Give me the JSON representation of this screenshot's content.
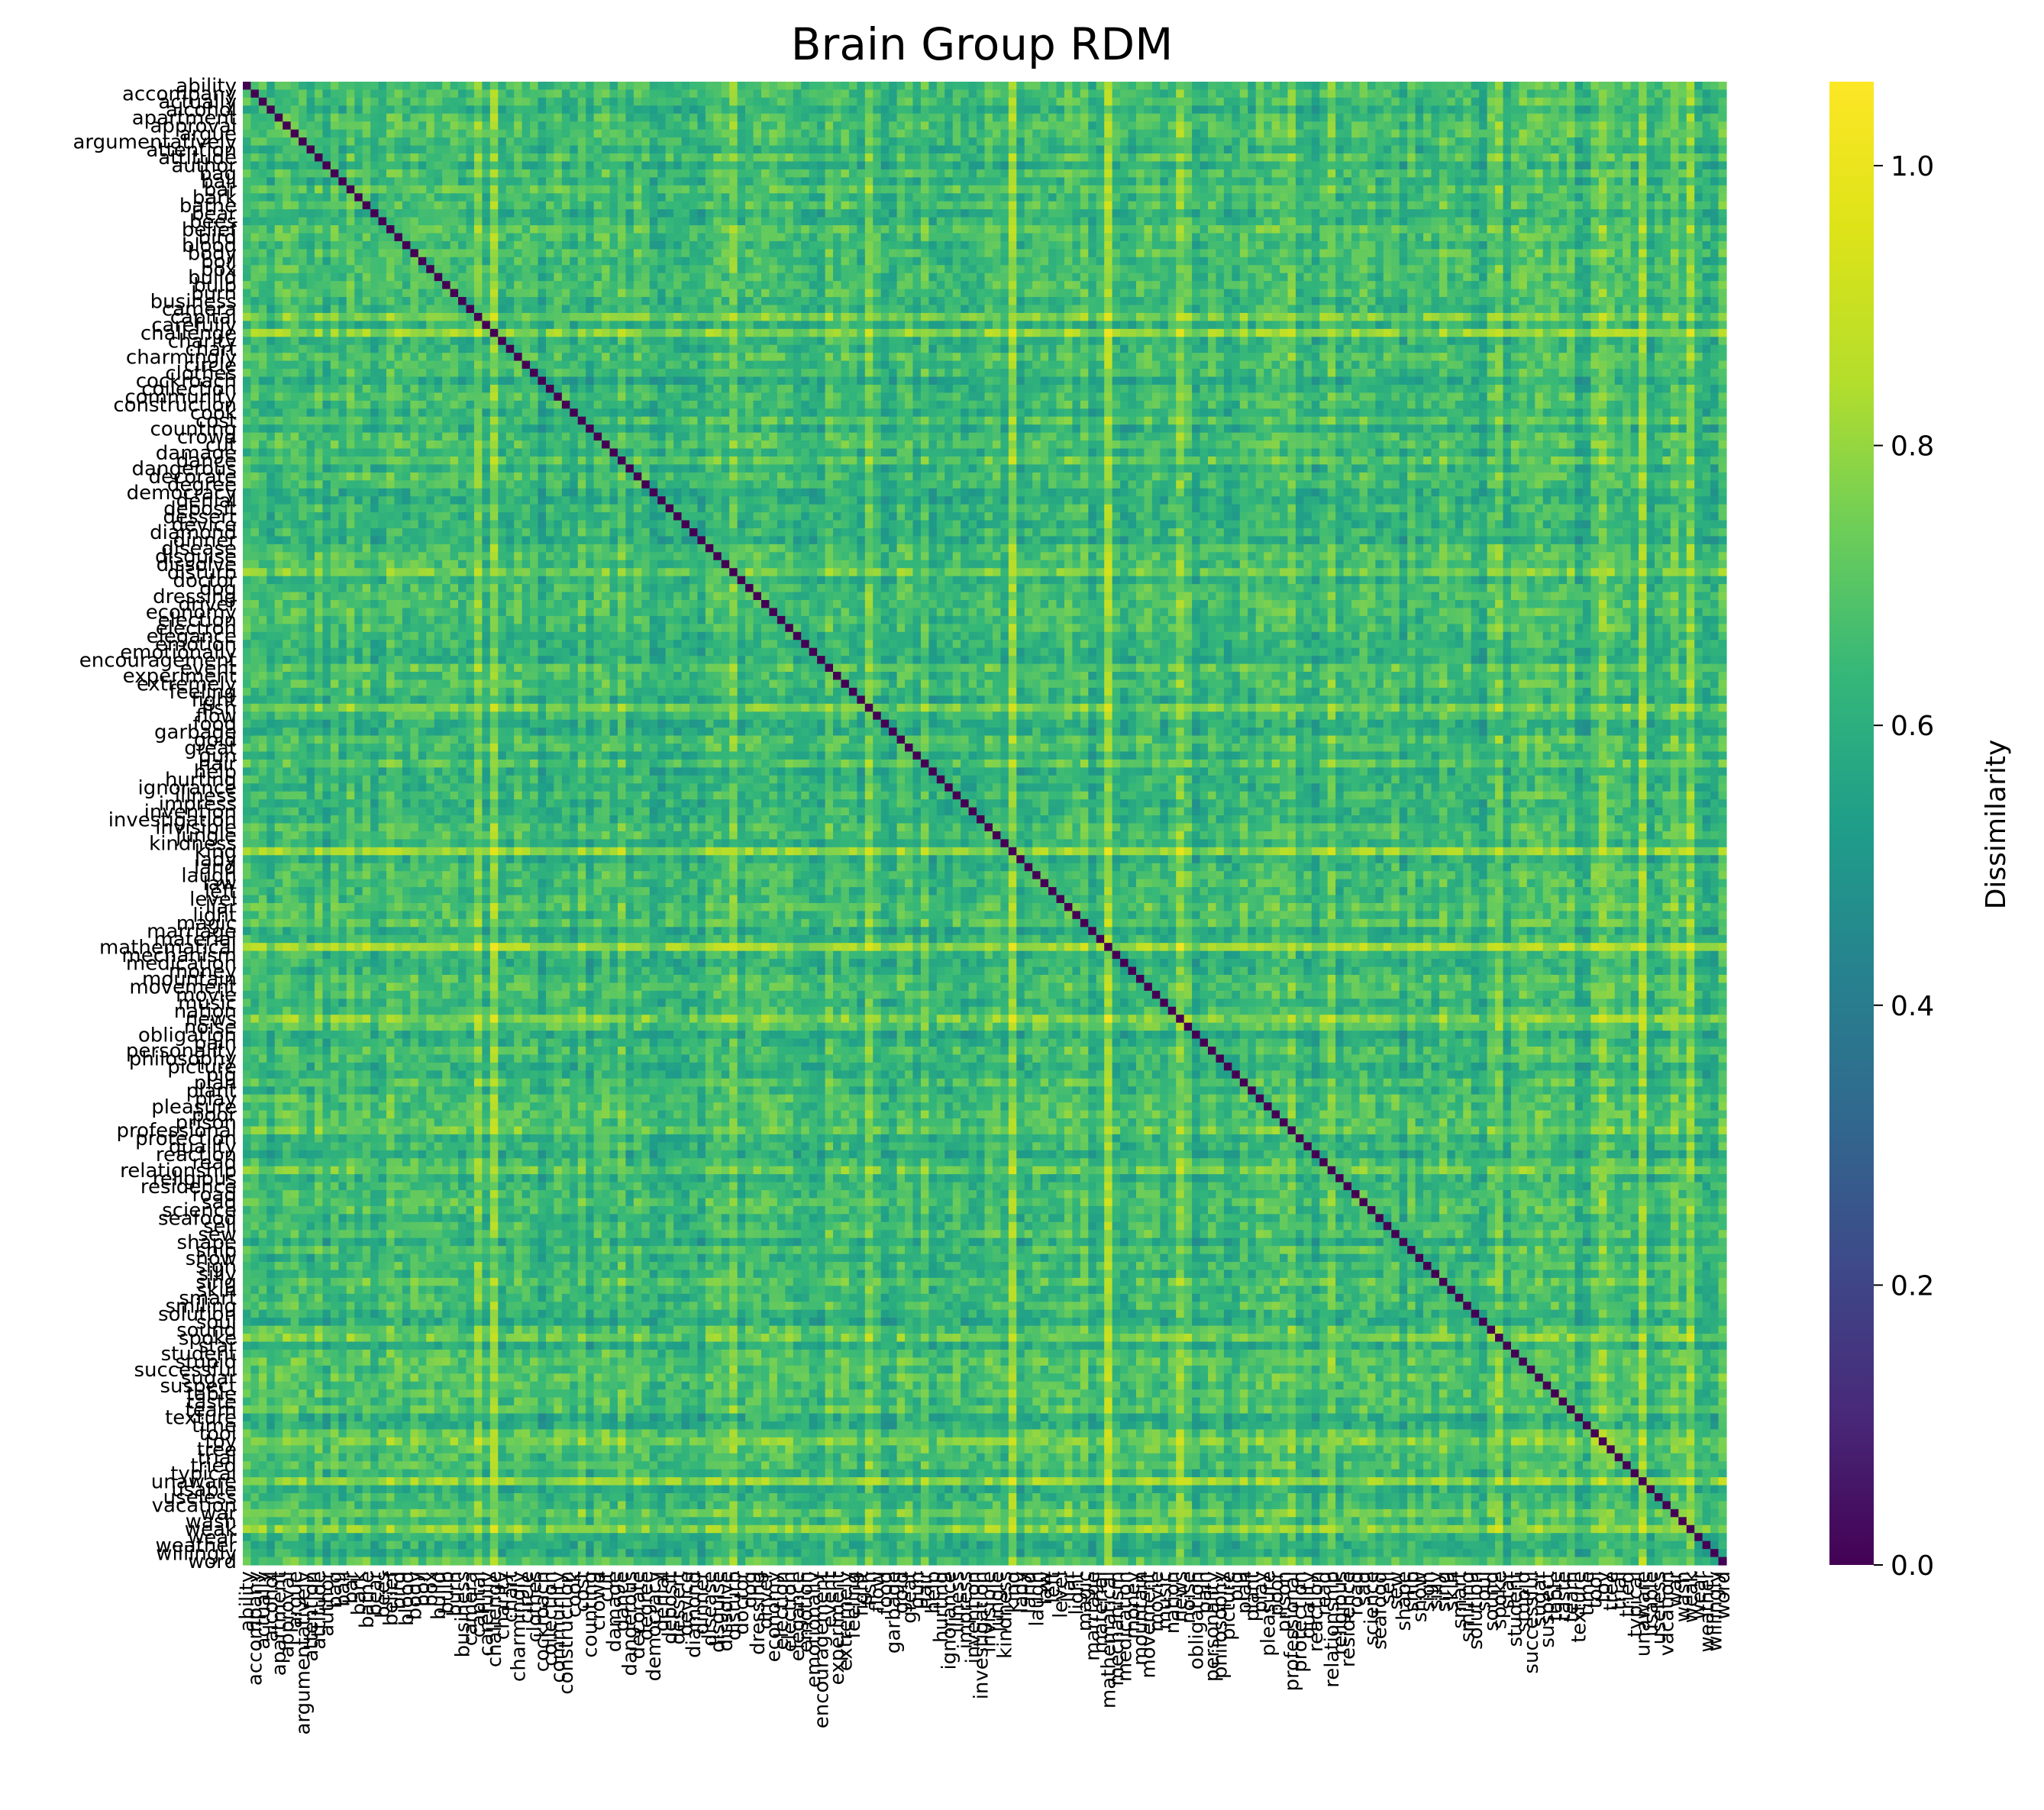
{
  "chart_data": {
    "type": "heatmap",
    "title": "Brain Group RDM",
    "colorbar": {
      "label": "Dissimilarity",
      "colormap": "viridis",
      "range": [
        0.0,
        1.06
      ],
      "ticks": [
        "0.0",
        "0.2",
        "0.4",
        "0.6",
        "0.8",
        "1.0"
      ]
    },
    "diagonal_value": 0.0,
    "off_diagonal_typical_range": [
      0.5,
      0.85
    ],
    "labels": [
      "ability",
      "accompany",
      "actually",
      "alcohol",
      "apartment",
      "approval",
      "argue",
      "argumentatively",
      "attention",
      "attitude",
      "author",
      "bag",
      "ball",
      "bar",
      "bark",
      "bathe",
      "bear",
      "bees",
      "belief",
      "bird",
      "blood",
      "body",
      "boil",
      "box",
      "build",
      "bulb",
      "burn",
      "business",
      "camera",
      "capital",
      "carefully",
      "challenge",
      "charity",
      "chart",
      "charmingly",
      "circle",
      "clothes",
      "cockroach",
      "collection",
      "community",
      "construction",
      "cook",
      "cost",
      "counting",
      "crowd",
      "cut",
      "damage",
      "dance",
      "dangerous",
      "decorate",
      "degree",
      "democracy",
      "denial",
      "deposit",
      "dessert",
      "device",
      "diamond",
      "dinner",
      "disease",
      "disguise",
      "dissolve",
      "disturb",
      "doctor",
      "dog",
      "dressing",
      "driver",
      "economy",
      "election",
      "electron",
      "elegance",
      "emotion",
      "emotionally",
      "encouragement",
      "event",
      "experiment",
      "extremely",
      "feeling",
      "fight",
      "fish",
      "flow",
      "food",
      "garbage",
      "gold",
      "great",
      "gun",
      "hair",
      "help",
      "hurting",
      "ignorance",
      "illness",
      "impress",
      "invention",
      "investigation",
      "invisible",
      "jungle",
      "kindness",
      "king",
      "lady",
      "land",
      "laugh",
      "law",
      "left",
      "level",
      "liar",
      "light",
      "magic",
      "marriage",
      "material",
      "mathematical",
      "mechanism",
      "medication",
      "money",
      "mountain",
      "movement",
      "movie",
      "music",
      "nation",
      "news",
      "noise",
      "obligation",
      "pain",
      "personality",
      "philosophy",
      "picture",
      "pig",
      "plan",
      "plant",
      "play",
      "pleasure",
      "poor",
      "prison",
      "professional",
      "protection",
      "quality",
      "reaction",
      "read",
      "relationship",
      "religious",
      "residence",
      "road",
      "sad",
      "science",
      "seafood",
      "sell",
      "sew",
      "shape",
      "ship",
      "show",
      "sign",
      "silly",
      "sing",
      "skin",
      "smart",
      "smiling",
      "solution",
      "soul",
      "sound",
      "spoke",
      "star",
      "student",
      "stupid",
      "successful",
      "sugar",
      "suspect",
      "table",
      "taste",
      "team",
      "texture",
      "time",
      "tool",
      "toy",
      "tree",
      "trial",
      "tried",
      "typical",
      "unaware",
      "usable",
      "useless",
      "vacation",
      "war",
      "wash",
      "weak",
      "wear",
      "weather",
      "willingly",
      "word"
    ]
  }
}
